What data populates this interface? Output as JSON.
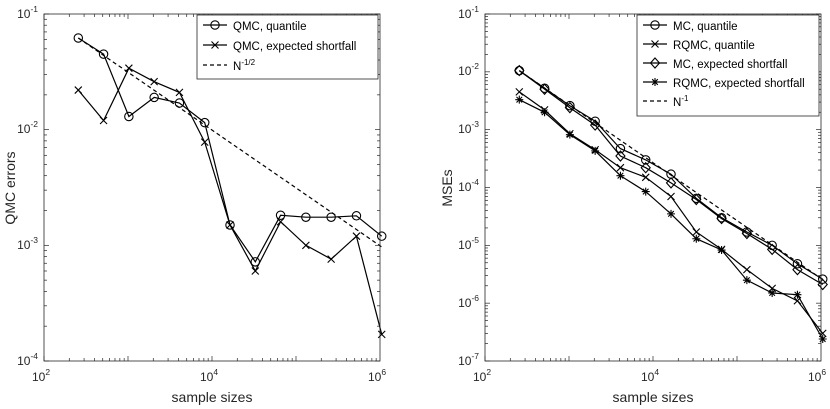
{
  "chart_data": [
    {
      "type": "line",
      "xscale": "log",
      "yscale": "log",
      "xlim": [
        100,
        1000000
      ],
      "ylim": [
        0.0001,
        0.1
      ],
      "xlabel": "sample sizes",
      "ylabel": "QMC errors",
      "xticks": [
        {
          "base": "10",
          "exp": "2"
        },
        {
          "base": "10",
          "exp": "4"
        },
        {
          "base": "10",
          "exp": "6"
        }
      ],
      "yticks": [
        {
          "base": "10",
          "exp": "-4"
        },
        {
          "base": "10",
          "exp": "-3"
        },
        {
          "base": "10",
          "exp": "-2"
        },
        {
          "base": "10",
          "exp": "-1"
        }
      ],
      "legend_position": "top-right",
      "series": [
        {
          "name": "QMC, quantile",
          "marker": "circle",
          "dash": "solid",
          "x": [
            256,
            512,
            1024,
            2048,
            4096,
            8192,
            16384,
            32768,
            65536,
            131072,
            262144,
            524288,
            1048576
          ],
          "y": [
            0.062,
            0.045,
            0.013,
            0.019,
            0.017,
            0.0115,
            0.0015,
            0.00072,
            0.00182,
            0.00175,
            0.00175,
            0.0018,
            0.0012
          ]
        },
        {
          "name": "QMC, expected shortfall",
          "marker": "x",
          "dash": "solid",
          "x": [
            256,
            512,
            1024,
            2048,
            4096,
            8192,
            16384,
            32768,
            65536,
            131072,
            262144,
            524288,
            1048576
          ],
          "y": [
            0.022,
            0.012,
            0.034,
            0.026,
            0.021,
            0.0078,
            0.0015,
            0.0006,
            0.0016,
            0.001,
            0.00076,
            0.0012,
            0.00017
          ]
        },
        {
          "name": "N^{-1/2}",
          "label_main": "N",
          "label_sup": "-1/2",
          "marker": "none",
          "dash": "dashed",
          "x": [
            256,
            1048576
          ],
          "y": [
            0.062,
            0.000969
          ]
        }
      ]
    },
    {
      "type": "line",
      "xscale": "log",
      "yscale": "log",
      "xlim": [
        100,
        1000000
      ],
      "ylim": [
        1e-07,
        0.1
      ],
      "xlabel": "sample sizes",
      "ylabel": "MSEs",
      "xticks": [
        {
          "base": "10",
          "exp": "2"
        },
        {
          "base": "10",
          "exp": "4"
        },
        {
          "base": "10",
          "exp": "6"
        }
      ],
      "yticks": [
        {
          "base": "10",
          "exp": "-7"
        },
        {
          "base": "10",
          "exp": "-6"
        },
        {
          "base": "10",
          "exp": "-5"
        },
        {
          "base": "10",
          "exp": "-4"
        },
        {
          "base": "10",
          "exp": "-3"
        },
        {
          "base": "10",
          "exp": "-2"
        },
        {
          "base": "10",
          "exp": "-1"
        }
      ],
      "legend_position": "top-right",
      "series": [
        {
          "name": "MC, quantile",
          "marker": "circle",
          "dash": "solid",
          "x": [
            256,
            512,
            1024,
            2048,
            4096,
            8192,
            16384,
            32768,
            65536,
            131072,
            262144,
            524288,
            1048576
          ],
          "y": [
            0.0105,
            0.0052,
            0.0026,
            0.0014,
            0.00047,
            0.0003,
            0.00017,
            6.5e-05,
            3e-05,
            1.7e-05,
            1e-05,
            4.8e-06,
            2.6e-06
          ]
        },
        {
          "name": "RQMC, quantile",
          "marker": "x",
          "dash": "solid",
          "x": [
            256,
            512,
            1024,
            2048,
            4096,
            8192,
            16384,
            32768,
            65536,
            131072,
            262144,
            524288,
            1048576
          ],
          "y": [
            0.0045,
            0.0022,
            0.00085,
            0.00045,
            0.00022,
            0.00015,
            7e-05,
            1.7e-05,
            8.5e-06,
            3.8e-06,
            1.8e-06,
            1.1e-06,
            3e-07
          ]
        },
        {
          "name": "MC, expected shortfall",
          "marker": "diamond",
          "dash": "solid",
          "x": [
            256,
            512,
            1024,
            2048,
            4096,
            8192,
            16384,
            32768,
            65536,
            131072,
            262144,
            524288,
            1048576
          ],
          "y": [
            0.0105,
            0.005,
            0.0024,
            0.0012,
            0.00035,
            0.00022,
            0.00012,
            6.2e-05,
            2.9e-05,
            1.6e-05,
            8.5e-06,
            3.8e-06,
            2.1e-06
          ]
        },
        {
          "name": "RQMC, expected shortfall",
          "marker": "asterisk",
          "dash": "solid",
          "x": [
            256,
            512,
            1024,
            2048,
            4096,
            8192,
            16384,
            32768,
            65536,
            131072,
            262144,
            524288,
            1048576
          ],
          "y": [
            0.0033,
            0.002,
            0.00082,
            0.00043,
            0.00016,
            8.5e-05,
            3.5e-05,
            1.3e-05,
            8.3e-06,
            2.5e-06,
            1.5e-06,
            1.4e-06,
            2.4e-07
          ]
        },
        {
          "name": "N^{-1}",
          "label_main": "N",
          "label_sup": "-1",
          "marker": "none",
          "dash": "dashed",
          "x": [
            256,
            1048576
          ],
          "y": [
            0.0105,
            2.56e-06
          ]
        }
      ]
    }
  ]
}
